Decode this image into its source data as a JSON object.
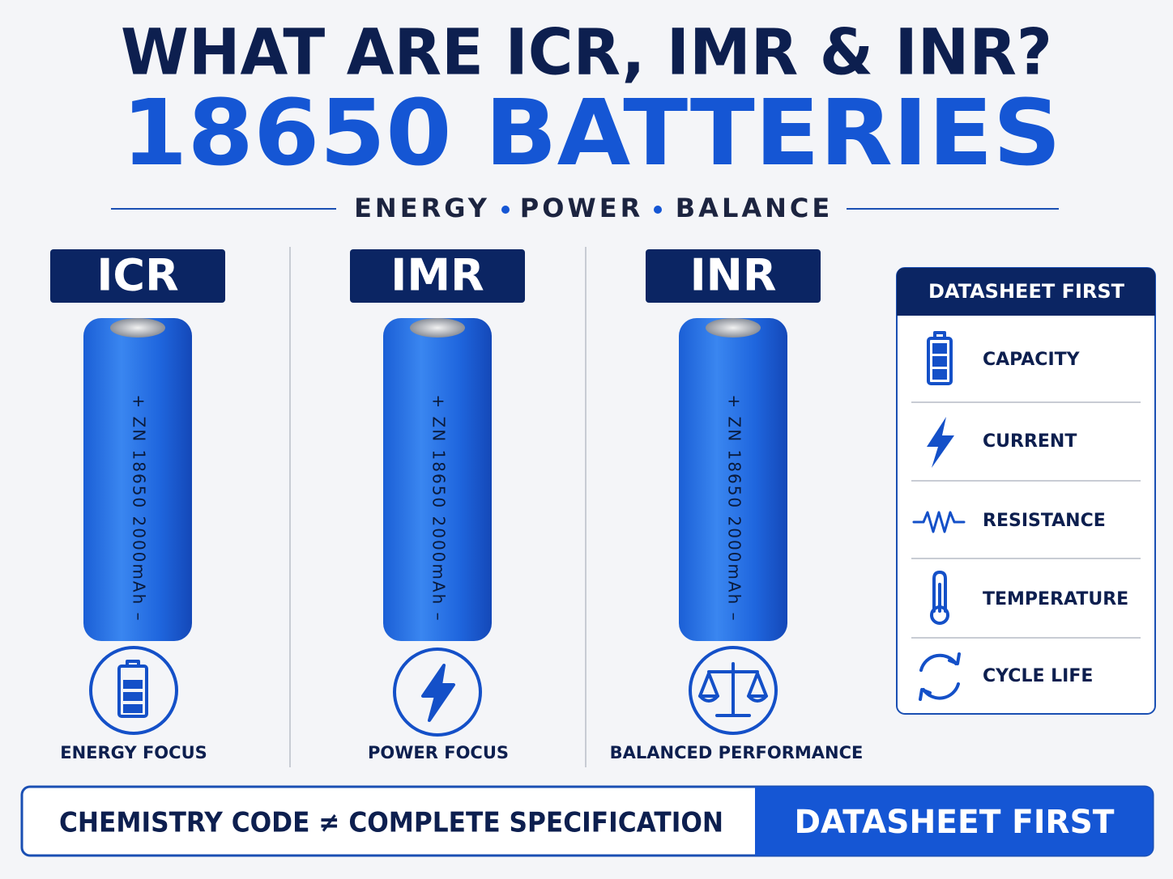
{
  "header": {
    "title": "WHAT ARE ICR, IMR & INR?",
    "subtitle": "18650 BATTERIES",
    "tags": [
      "ENERGY",
      "POWER",
      "BALANCE"
    ]
  },
  "columns": [
    {
      "label": "ICR",
      "battery_text": "+ ZN 18650 2000mAh –",
      "focus": "ENERGY FOCUS"
    },
    {
      "label": "IMR",
      "battery_text": "+ ZN 18650 2000mAh –",
      "focus": "POWER FOCUS"
    },
    {
      "label": "INR",
      "battery_text": "+ ZN 18650 2000mAh –",
      "focus": "BALANCED PERFORMANCE"
    }
  ],
  "sidebar": {
    "title": "DATASHEET FIRST",
    "items": [
      "CAPACITY",
      "CURRENT",
      "RESISTANCE",
      "TEMPERATURE",
      "CYCLE LIFE"
    ]
  },
  "footer": {
    "left": "CHEMISTRY CODE ≠ COMPLETE SPECIFICATION",
    "right": "DATASHEET FIRST"
  }
}
